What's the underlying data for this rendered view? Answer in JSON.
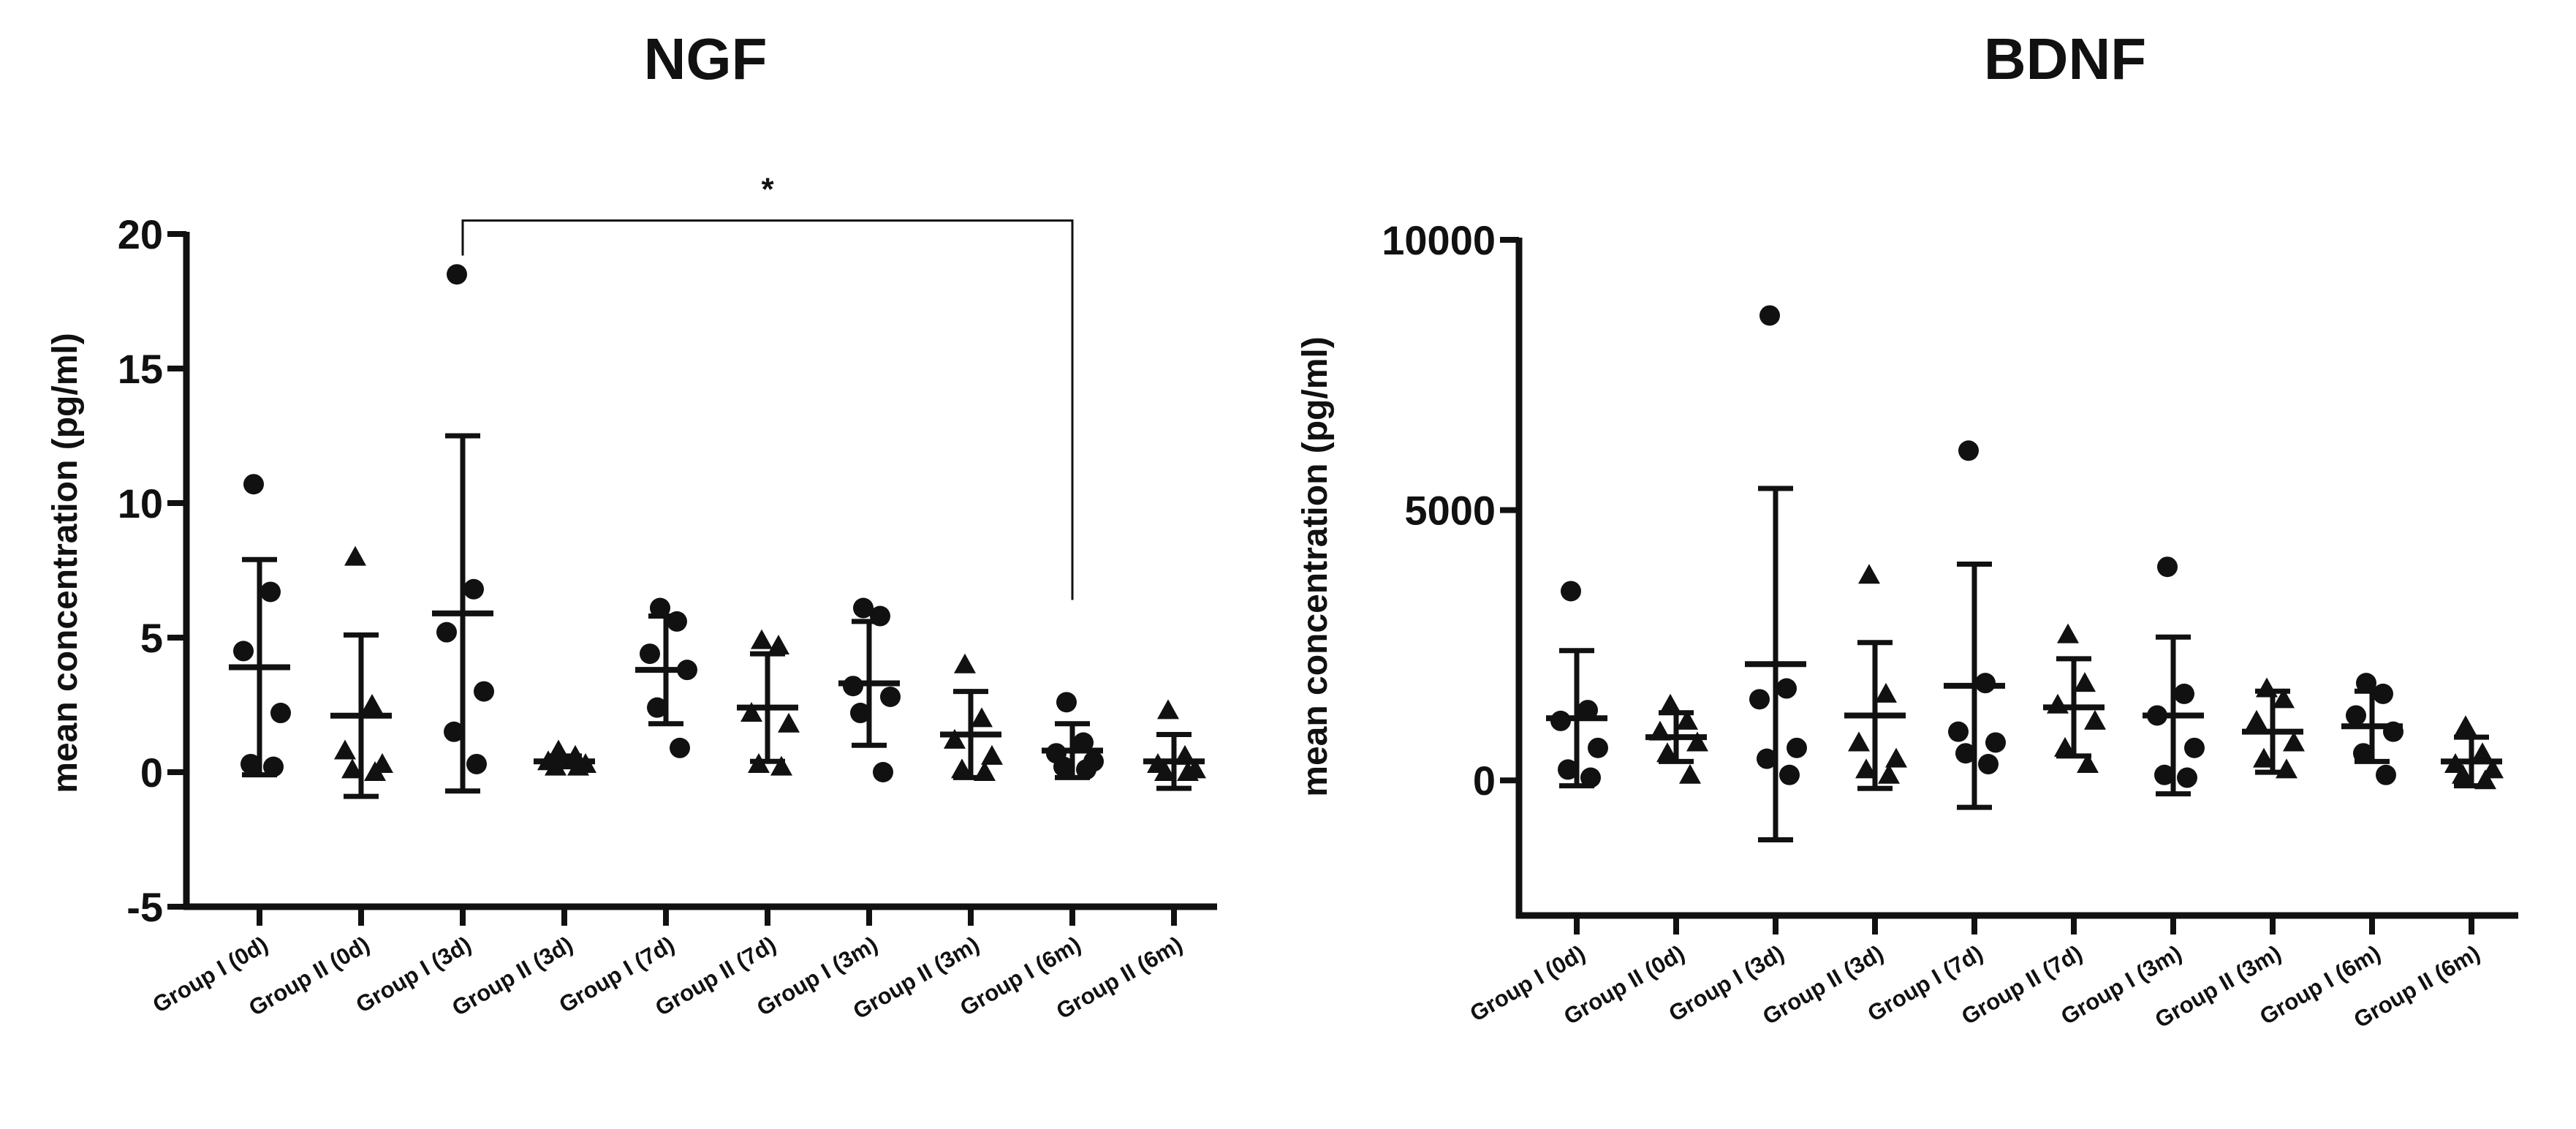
{
  "chart_data": [
    {
      "type": "scatter",
      "title": "NGF",
      "ylabel": "mean concentration (pg/ml)",
      "xlabel": "",
      "ylim": [
        -5,
        20
      ],
      "yticks": [
        -5,
        0,
        5,
        10,
        15,
        20
      ],
      "ytick_labels": [
        "-5",
        "0",
        "5",
        "10",
        "15",
        "20"
      ],
      "categories": [
        "Group I (0d)",
        "Group II (0d)",
        "Group I (3d)",
        "Group II (3d)",
        "Group I (7d)",
        "Group II (7d)",
        "Group I (3m)",
        "Group II (3m)",
        "Group I (6m)",
        "Group II (6m)"
      ],
      "markers": [
        "circle",
        "triangle",
        "circle",
        "triangle",
        "circle",
        "triangle",
        "circle",
        "triangle",
        "circle",
        "triangle"
      ],
      "groups": [
        {
          "mean": 3.9,
          "sd": 4.0,
          "points": [
            10.7,
            6.7,
            4.5,
            2.2,
            0.3,
            0.2
          ]
        },
        {
          "mean": 2.1,
          "sd": 3.0,
          "points": [
            8.0,
            2.5,
            0.8,
            0.3,
            0.1,
            0.0
          ]
        },
        {
          "mean": 5.9,
          "sd": 6.6,
          "points": [
            18.5,
            6.8,
            5.2,
            3.0,
            1.5,
            0.3
          ]
        },
        {
          "mean": 0.4,
          "sd": 0.2,
          "points": [
            0.8,
            0.6,
            0.4,
            0.3,
            0.2,
            0.2
          ]
        },
        {
          "mean": 3.8,
          "sd": 2.0,
          "points": [
            6.1,
            5.6,
            4.4,
            3.8,
            2.4,
            0.9
          ]
        },
        {
          "mean": 2.4,
          "sd": 2.0,
          "points": [
            4.9,
            4.7,
            2.2,
            1.8,
            0.3,
            0.2
          ]
        },
        {
          "mean": 3.3,
          "sd": 2.3,
          "points": [
            6.1,
            5.8,
            3.2,
            2.8,
            2.2,
            0.0
          ]
        },
        {
          "mean": 1.4,
          "sd": 1.6,
          "points": [
            4.0,
            2.0,
            1.2,
            0.6,
            0.1,
            0.0
          ]
        },
        {
          "mean": 0.8,
          "sd": 1.0,
          "points": [
            2.6,
            1.1,
            0.7,
            0.4,
            0.2,
            0.1
          ]
        },
        {
          "mean": 0.4,
          "sd": 1.0,
          "points": [
            2.3,
            0.6,
            0.3,
            0.1,
            0.0,
            0.0
          ]
        }
      ],
      "annotation": {
        "text": "*",
        "from": "Group I (3d)",
        "to": "Group I (6m)",
        "level": 20.5
      }
    },
    {
      "type": "scatter",
      "title": "BDNF",
      "ylabel": "mean concentration (pg/ml)",
      "xlabel": "",
      "ylim": [
        -2500,
        10000
      ],
      "yticks": [
        0,
        5000,
        10000
      ],
      "ytick_labels": [
        "0",
        "5000",
        "10000"
      ],
      "categories": [
        "Group I (0d)",
        "Group II (0d)",
        "Group I (3d)",
        "Group II (3d)",
        "Group I (7d)",
        "Group II (7d)",
        "Group I (3m)",
        "Group II (3m)",
        "Group I (6m)",
        "Group II (6m)"
      ],
      "markers": [
        "circle",
        "triangle",
        "circle",
        "triangle",
        "circle",
        "triangle",
        "circle",
        "triangle",
        "circle",
        "triangle"
      ],
      "groups": [
        {
          "mean": 1150,
          "sd": 1250,
          "points": [
            3500,
            1300,
            1100,
            600,
            200,
            50
          ]
        },
        {
          "mean": 800,
          "sd": 450,
          "points": [
            1400,
            1100,
            900,
            700,
            500,
            100
          ]
        },
        {
          "mean": 2150,
          "sd": 3250,
          "points": [
            8600,
            1700,
            1500,
            600,
            400,
            100
          ]
        },
        {
          "mean": 1200,
          "sd": 1350,
          "points": [
            3800,
            1600,
            700,
            400,
            200,
            100
          ]
        },
        {
          "mean": 1750,
          "sd": 2250,
          "points": [
            6100,
            1800,
            900,
            700,
            500,
            300
          ]
        },
        {
          "mean": 1350,
          "sd": 900,
          "points": [
            2700,
            1800,
            1400,
            1100,
            600,
            300
          ]
        },
        {
          "mean": 1200,
          "sd": 1450,
          "points": [
            3950,
            1600,
            1200,
            600,
            100,
            50
          ]
        },
        {
          "mean": 900,
          "sd": 750,
          "points": [
            1700,
            1500,
            1100,
            700,
            400,
            200
          ]
        },
        {
          "mean": 1000,
          "sd": 650,
          "points": [
            1800,
            1600,
            1200,
            900,
            500,
            100
          ]
        },
        {
          "mean": 350,
          "sd": 450,
          "points": [
            1000,
            500,
            300,
            200,
            100,
            0
          ]
        }
      ]
    }
  ]
}
